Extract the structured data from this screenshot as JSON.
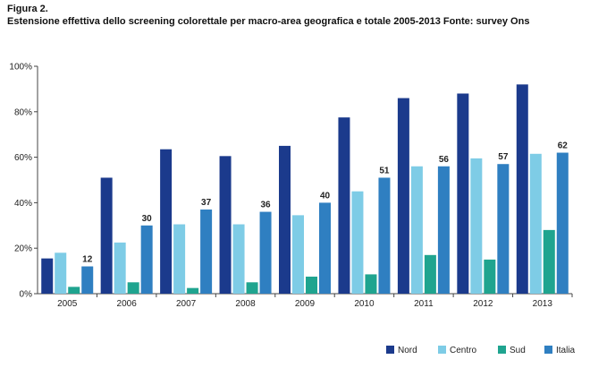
{
  "figure": {
    "label": "Figura 2.",
    "title": "Estensione effettiva dello screening colorettale per macro-area geografica e totale 2005-2013 Fonte: survey Ons"
  },
  "colors": {
    "Nord": "#1b3a8c",
    "Centro": "#7ecce6",
    "Sud": "#1fa48f",
    "Italia": "#2f7fc1"
  },
  "chart_data": {
    "type": "bar",
    "categories": [
      "2005",
      "2006",
      "2007",
      "2008",
      "2009",
      "2010",
      "2011",
      "2012",
      "2013"
    ],
    "series": [
      {
        "name": "Nord",
        "values": [
          15.5,
          51,
          63.5,
          60.5,
          65,
          77.5,
          86,
          88,
          92
        ]
      },
      {
        "name": "Centro",
        "values": [
          18,
          22.5,
          30.5,
          30.5,
          34.5,
          45,
          56,
          59.5,
          61.5
        ]
      },
      {
        "name": "Sud",
        "values": [
          3,
          5,
          2.5,
          5,
          7.5,
          8.5,
          17,
          15,
          28
        ]
      },
      {
        "name": "Italia",
        "values": [
          12,
          30,
          37,
          36,
          40,
          51,
          56,
          57,
          62
        ]
      }
    ],
    "data_labels": {
      "series": "Italia",
      "values": [
        "12",
        "30",
        "37",
        "36",
        "40",
        "51",
        "56",
        "57",
        "62"
      ]
    },
    "y_ticks": [
      "0%",
      "20%",
      "40%",
      "60%",
      "80%",
      "100%"
    ],
    "ylim": [
      0,
      100
    ],
    "grid": false,
    "legend_position": "bottom-right"
  }
}
